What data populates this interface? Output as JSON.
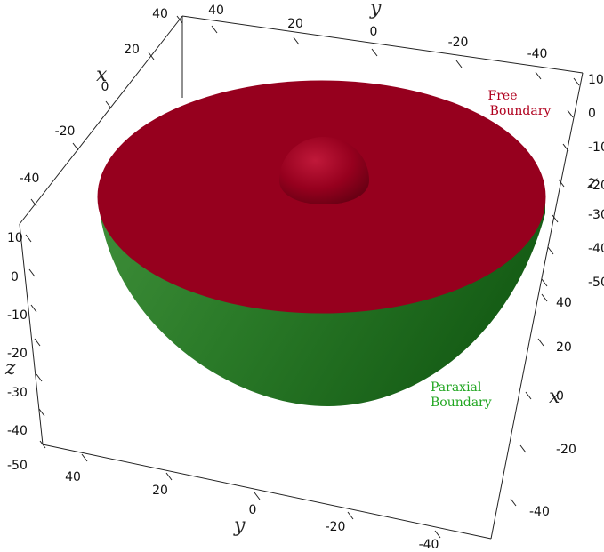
{
  "colors": {
    "free": "#96001e",
    "paraxial": "#1e6e1e",
    "free_text": "#b0001e",
    "paraxial_text": "#21a621",
    "axis": "#222222"
  },
  "labels": {
    "free_line1": "Free",
    "free_line2": "Boundary",
    "paraxial_line1": "Paraxial",
    "paraxial_line2": "Boundary"
  },
  "axes": {
    "top_x": {
      "name": "x",
      "ticks": [
        "40",
        "20",
        "0",
        "-20",
        "-40"
      ]
    },
    "top_y": {
      "name": "y",
      "ticks": [
        "40",
        "20",
        "0",
        "-20",
        "-40"
      ]
    },
    "right_z": {
      "name": "z",
      "ticks": [
        "10",
        "0",
        "-10",
        "-20",
        "-30",
        "-40",
        "-50"
      ]
    },
    "left_z": {
      "name": "z",
      "ticks": [
        "10",
        "0",
        "-10",
        "-20",
        "-30",
        "-40",
        "-50"
      ]
    },
    "right_x": {
      "name": "x",
      "ticks": [
        "40",
        "20",
        "0",
        "-20",
        "-40"
      ]
    },
    "bottom_y": {
      "name": "y",
      "ticks": [
        "40",
        "20",
        "0",
        "-20",
        "-40"
      ]
    }
  }
}
